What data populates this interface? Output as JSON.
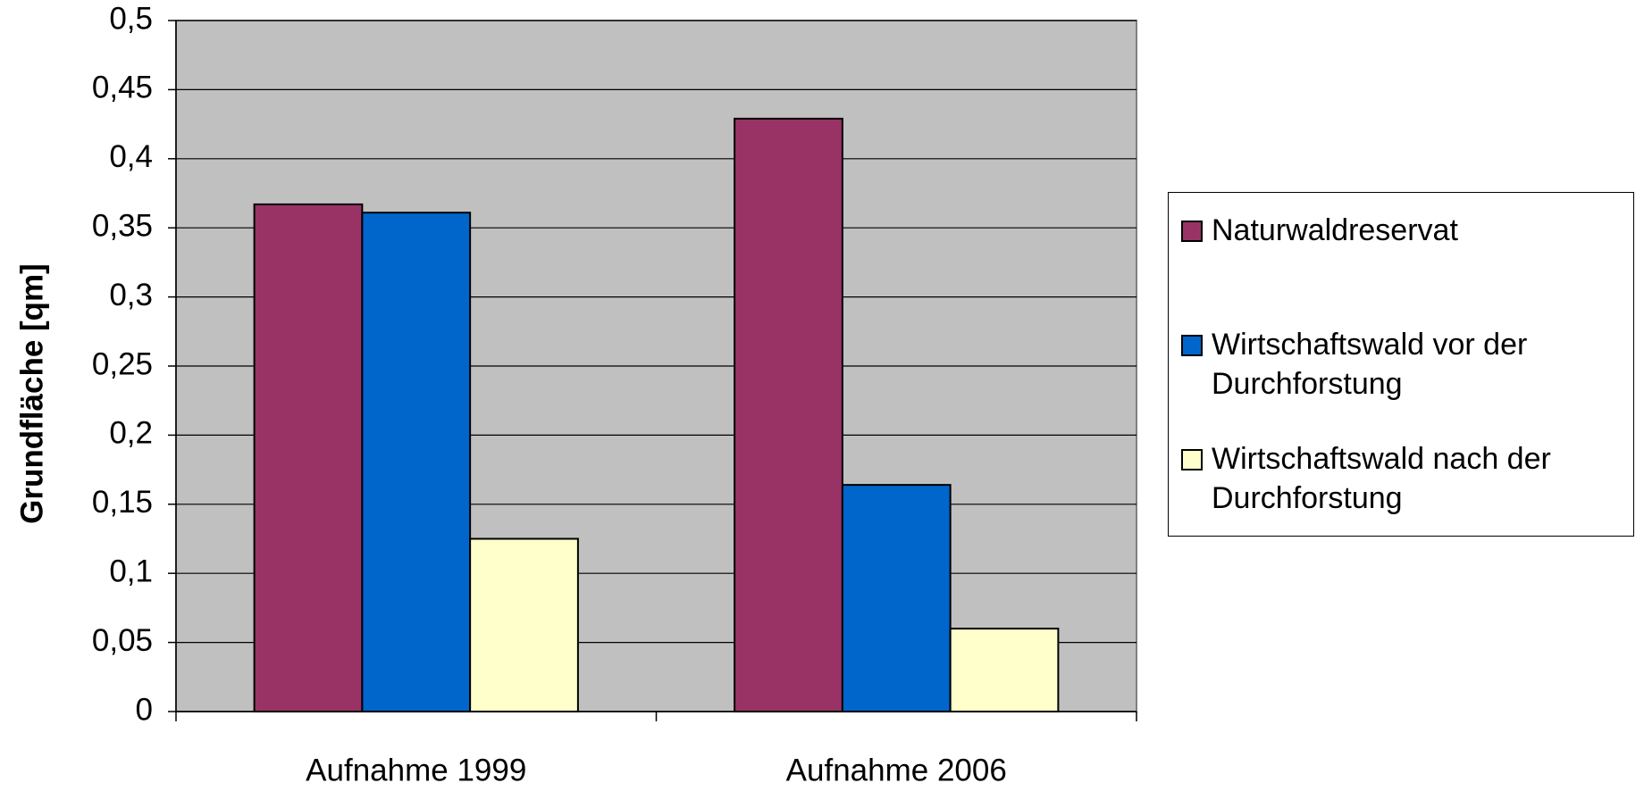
{
  "chart_data": {
    "type": "bar",
    "categories": [
      "Aufnahme 1999",
      "Aufnahme 2006"
    ],
    "series": [
      {
        "name": "Naturwaldreservat",
        "color": "#993366",
        "values": [
          0.367,
          0.429
        ]
      },
      {
        "name": "Wirtschaftswald vor der Durchforstung",
        "color": "#0066cc",
        "values": [
          0.361,
          0.164
        ]
      },
      {
        "name": "Wirtschaftswald nach der Durchforstung",
        "color": "#ffffcc",
        "values": [
          0.125,
          0.06
        ]
      }
    ],
    "y_label": "Grundfläche [qm]",
    "ylim": [
      0,
      0.5
    ],
    "yticks": [
      0,
      {
        "value": 0.05,
        "label": "0,05"
      },
      {
        "value": 0.1,
        "label": "0,1"
      },
      {
        "value": 0.15,
        "label": "0,15"
      },
      {
        "value": 0.2,
        "label": "0,2"
      },
      {
        "value": 0.25,
        "label": "0,25"
      },
      {
        "value": 0.3,
        "label": "0,3"
      },
      {
        "value": 0.35,
        "label": "0,35"
      },
      {
        "value": 0.4,
        "label": "0,4"
      },
      {
        "value": 0.45,
        "label": "0,45"
      },
      {
        "value": 0.5,
        "label": "0,5"
      }
    ],
    "grid": true,
    "legend": "right",
    "plot_background": "#c0c0c0"
  }
}
